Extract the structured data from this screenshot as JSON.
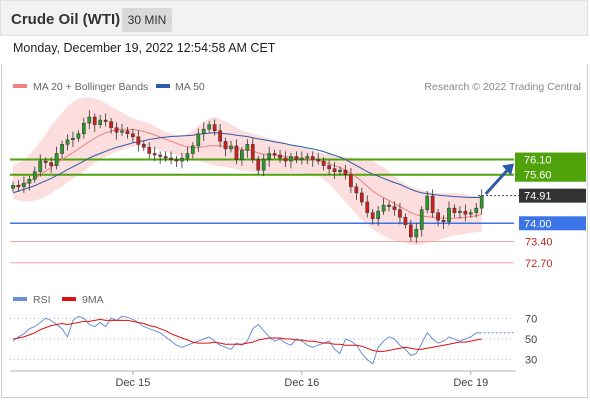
{
  "header": {
    "title": "Crude Oil (WTI)",
    "timeframe": "30 MIN"
  },
  "datetime": "Monday, December 19, 2022 12:54:58 AM CET",
  "credit": "Research © 2022 Trading Central",
  "colors": {
    "ma20": "#f08080",
    "ma50": "#2d5ca6",
    "bands": "#fbd3d3",
    "resistance": "#4fa20a",
    "support": "#3a74e6",
    "support2": "#f5a3a3",
    "rsi": "#6a8fd8",
    "rsi_ma": "#e01010"
  },
  "chart_data": [
    {
      "type": "candlestick",
      "legend": [
        {
          "name": "MA 20 + Bollinger Bands",
          "color": "#f08080"
        },
        {
          "name": "MA 50",
          "color": "#2d5ca6"
        }
      ],
      "x_ticks": [
        "Dec 15",
        "Dec 16",
        "Dec 19"
      ],
      "ylim": [
        72.4,
        78.2
      ],
      "last_price": 74.91,
      "levels": [
        {
          "label": "76.10",
          "value": 76.1,
          "kind": "resistance",
          "color": "#4fa20a"
        },
        {
          "label": "75.60",
          "value": 75.6,
          "kind": "resistance",
          "color": "#4fa20a"
        },
        {
          "label": "74.91",
          "value": 74.91,
          "kind": "last",
          "color": "#333333"
        },
        {
          "label": "74.00",
          "value": 74.0,
          "kind": "support",
          "color": "#3a74e6"
        },
        {
          "label": "73.40",
          "value": 73.4,
          "kind": "support",
          "color": "#f5a3a3"
        },
        {
          "label": "72.70",
          "value": 72.7,
          "kind": "support",
          "color": "#f5a3a3"
        }
      ],
      "close": [
        75.25,
        75.2,
        75.32,
        75.45,
        75.7,
        76.05,
        76.0,
        75.9,
        76.3,
        76.6,
        76.75,
        76.8,
        76.95,
        77.3,
        77.5,
        77.25,
        77.4,
        77.35,
        77.15,
        77.0,
        77.05,
        76.95,
        76.85,
        76.6,
        76.5,
        76.3,
        76.25,
        76.2,
        76.15,
        76.1,
        76.05,
        76.15,
        76.3,
        76.55,
        76.95,
        77.1,
        77.25,
        77.05,
        76.7,
        76.45,
        76.55,
        76.1,
        76.4,
        76.6,
        76.1,
        75.75,
        76.1,
        76.3,
        76.25,
        76.15,
        76.05,
        76.2,
        76.1,
        76.15,
        76.2,
        76.1,
        76.05,
        75.9,
        75.8,
        75.7,
        75.75,
        75.6,
        75.2,
        75.0,
        74.7,
        74.35,
        74.15,
        74.4,
        74.6,
        74.55,
        74.45,
        74.2,
        73.95,
        73.55,
        73.8,
        74.45,
        74.9,
        74.35,
        74.1,
        74.05,
        74.5,
        74.35,
        74.4,
        74.3,
        74.35,
        74.5,
        74.9
      ],
      "ma50": [
        75.0,
        75.06,
        75.12,
        75.18,
        75.24,
        75.32,
        75.4,
        75.48,
        75.57,
        75.67,
        75.77,
        75.86,
        75.95,
        76.05,
        76.15,
        76.23,
        76.3,
        76.37,
        76.44,
        76.5,
        76.55,
        76.6,
        76.65,
        76.69,
        76.72,
        76.76,
        76.79,
        76.82,
        76.84,
        76.86,
        76.87,
        76.88,
        76.89,
        76.9,
        76.93,
        76.95,
        76.97,
        76.98,
        76.97,
        76.95,
        76.93,
        76.9,
        76.88,
        76.86,
        76.82,
        76.78,
        76.75,
        76.72,
        76.68,
        76.65,
        76.62,
        76.58,
        76.55,
        76.52,
        76.48,
        76.45,
        76.41,
        76.36,
        76.3,
        76.24,
        76.18,
        76.1,
        76.0,
        75.9,
        75.8,
        75.7,
        75.62,
        75.55,
        75.48,
        75.41,
        75.34,
        75.28,
        75.2,
        75.12,
        75.05,
        75.0,
        74.98,
        74.95,
        74.93,
        74.91,
        74.9,
        74.88,
        74.87,
        74.86,
        74.85,
        74.85,
        74.85
      ],
      "ma20": [
        75.2,
        75.24,
        75.3,
        75.38,
        75.48,
        75.6,
        75.72,
        75.84,
        75.97,
        76.1,
        76.22,
        76.33,
        76.45,
        76.57,
        76.69,
        76.8,
        76.9,
        76.98,
        77.04,
        77.08,
        77.1,
        77.1,
        77.09,
        77.06,
        77.02,
        76.97,
        76.91,
        76.84,
        76.77,
        76.7,
        76.63,
        76.57,
        76.52,
        76.5,
        76.5,
        76.52,
        76.55,
        76.56,
        76.55,
        76.53,
        76.5,
        76.46,
        76.43,
        76.42,
        76.38,
        76.32,
        76.28,
        76.26,
        76.24,
        76.22,
        76.2,
        76.18,
        76.16,
        76.14,
        76.12,
        76.1,
        76.07,
        76.02,
        75.96,
        75.9,
        75.83,
        75.75,
        75.64,
        75.52,
        75.38,
        75.22,
        75.06,
        74.94,
        74.84,
        74.75,
        74.65,
        74.55,
        74.45,
        74.35,
        74.28,
        74.24,
        74.22,
        74.2,
        74.18,
        74.16,
        74.16,
        74.17,
        74.18,
        74.2,
        74.22,
        74.25,
        74.3
      ],
      "bands_upper": [
        75.9,
        76.0,
        76.1,
        76.25,
        76.45,
        76.7,
        76.95,
        77.2,
        77.45,
        77.65,
        77.85,
        78.0,
        78.1,
        78.15,
        78.15,
        78.1,
        78.05,
        77.95,
        77.85,
        77.75,
        77.65,
        77.55,
        77.45,
        77.4,
        77.35,
        77.3,
        77.2,
        77.1,
        77.0,
        76.95,
        76.9,
        76.9,
        76.95,
        77.05,
        77.2,
        77.35,
        77.45,
        77.5,
        77.45,
        77.35,
        77.25,
        77.15,
        77.05,
        77.0,
        76.95,
        76.9,
        76.85,
        76.8,
        76.75,
        76.7,
        76.65,
        76.6,
        76.55,
        76.5,
        76.45,
        76.4,
        76.35,
        76.3,
        76.28,
        76.25,
        76.22,
        76.2,
        76.18,
        76.15,
        76.12,
        76.1,
        76.05,
        75.95,
        75.85,
        75.7,
        75.55,
        75.4,
        75.3,
        75.2,
        75.15,
        75.1,
        75.05,
        75.0,
        75.0,
        75.0,
        75.0,
        75.0,
        74.98,
        74.95,
        74.92,
        74.9,
        74.9
      ],
      "bands_lower": [
        74.8,
        74.75,
        74.72,
        74.72,
        74.75,
        74.8,
        74.88,
        74.98,
        75.1,
        75.22,
        75.35,
        75.48,
        75.6,
        75.72,
        75.85,
        75.98,
        76.1,
        76.2,
        76.28,
        76.35,
        76.42,
        76.48,
        76.52,
        76.55,
        76.55,
        76.5,
        76.45,
        76.4,
        76.35,
        76.3,
        76.25,
        76.2,
        76.15,
        76.1,
        76.05,
        76.0,
        75.95,
        75.9,
        75.88,
        75.85,
        75.82,
        75.78,
        75.75,
        75.72,
        75.7,
        75.68,
        75.65,
        75.65,
        75.65,
        75.65,
        75.65,
        75.65,
        75.65,
        75.65,
        75.62,
        75.6,
        75.55,
        75.45,
        75.3,
        75.1,
        74.9,
        74.7,
        74.5,
        74.3,
        74.1,
        73.95,
        73.8,
        73.68,
        73.58,
        73.5,
        73.45,
        73.4,
        73.35,
        73.3,
        73.28,
        73.3,
        73.35,
        73.4,
        73.45,
        73.5,
        73.55,
        73.6,
        73.62,
        73.65,
        73.68,
        73.7,
        73.72
      ]
    },
    {
      "type": "line",
      "series": [
        {
          "name": "RSI",
          "color": "#6a8fd8"
        },
        {
          "name": "9MA",
          "color": "#e01010"
        }
      ],
      "y_ticks": [
        70,
        50,
        30
      ],
      "ylim": [
        20,
        80
      ],
      "rsi": [
        48,
        52,
        55,
        60,
        62,
        66,
        70,
        68,
        64,
        60,
        52,
        68,
        72,
        70,
        64,
        62,
        66,
        62,
        70,
        68,
        72,
        71,
        69,
        66,
        62,
        60,
        58,
        56,
        52,
        48,
        44,
        42,
        44,
        46,
        48,
        50,
        52,
        48,
        44,
        42,
        40,
        46,
        44,
        48,
        60,
        64,
        58,
        52,
        48,
        50,
        46,
        44,
        50,
        48,
        44,
        42,
        44,
        46,
        48,
        40,
        36,
        50,
        48,
        44,
        36,
        30,
        26,
        42,
        48,
        52,
        50,
        44,
        40,
        34,
        36,
        46,
        56,
        50,
        46,
        48,
        52,
        50,
        48,
        50,
        52,
        56,
        56
      ],
      "rsi_ma": [
        50,
        51,
        52,
        54,
        56,
        59,
        61,
        63,
        64,
        65,
        64,
        65,
        66,
        67,
        67,
        68,
        69,
        68,
        68,
        68,
        68,
        68,
        67,
        66,
        65,
        63,
        62,
        60,
        58,
        55,
        53,
        51,
        49,
        47,
        46,
        46,
        46,
        47,
        46,
        45,
        45,
        45,
        45,
        46,
        47,
        49,
        50,
        51,
        51,
        51,
        50,
        50,
        49,
        49,
        48,
        48,
        47,
        46,
        46,
        45,
        45,
        44,
        44,
        44,
        43,
        41,
        39,
        38,
        38,
        39,
        40,
        41,
        42,
        41,
        40,
        40,
        41,
        42,
        43,
        44,
        45,
        46,
        47,
        47,
        48,
        49,
        50
      ]
    }
  ]
}
